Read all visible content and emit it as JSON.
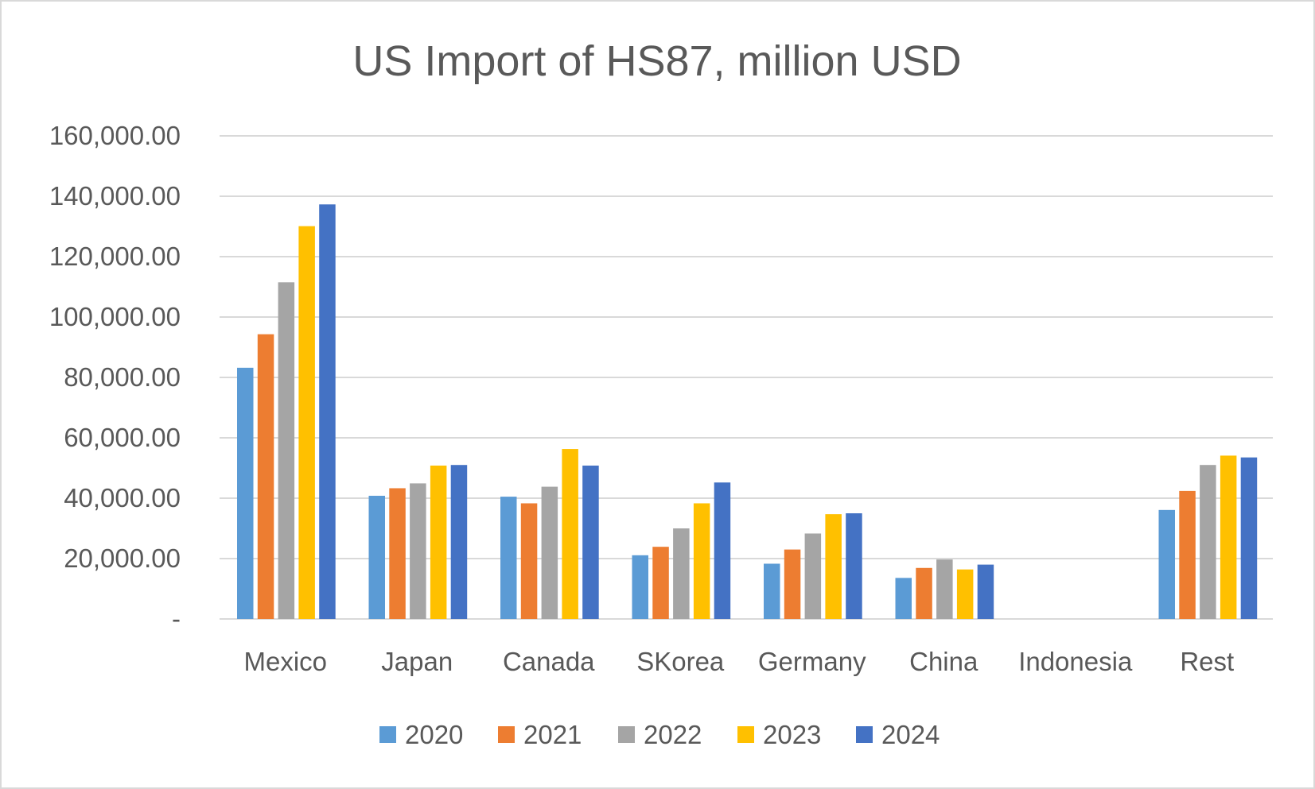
{
  "chart_data": {
    "type": "bar",
    "title": "US Import of HS87, million USD",
    "xlabel": "",
    "ylabel": "",
    "ylim": [
      0,
      160000
    ],
    "yticks": [
      0,
      20000,
      40000,
      60000,
      80000,
      100000,
      120000,
      140000,
      160000
    ],
    "ytick_labels": [
      "-",
      "20,000.00",
      "40,000.00",
      "60,000.00",
      "80,000.00",
      "100,000.00",
      "120,000.00",
      "140,000.00",
      "160,000.00"
    ],
    "grid": true,
    "legend_position": "bottom",
    "categories": [
      "Mexico",
      "Japan",
      "Canada",
      "SKorea",
      "Germany",
      "China",
      "Indonesia",
      "Rest"
    ],
    "series": [
      {
        "name": "2020",
        "color": "#5b9bd5",
        "values": [
          83200,
          40800,
          40500,
          21100,
          18300,
          13600,
          0,
          36100
        ]
      },
      {
        "name": "2021",
        "color": "#ed7d31",
        "values": [
          94300,
          43300,
          38300,
          23900,
          23000,
          16900,
          0,
          42400
        ]
      },
      {
        "name": "2022",
        "color": "#a5a5a5",
        "values": [
          111500,
          44900,
          43800,
          30000,
          28300,
          19700,
          0,
          51000
        ]
      },
      {
        "name": "2023",
        "color": "#ffc000",
        "values": [
          130100,
          50800,
          56300,
          38300,
          34700,
          16400,
          0,
          54100
        ]
      },
      {
        "name": "2024",
        "color": "#4472c4",
        "values": [
          137300,
          51000,
          50800,
          45200,
          35000,
          18000,
          0,
          53500
        ]
      }
    ]
  }
}
